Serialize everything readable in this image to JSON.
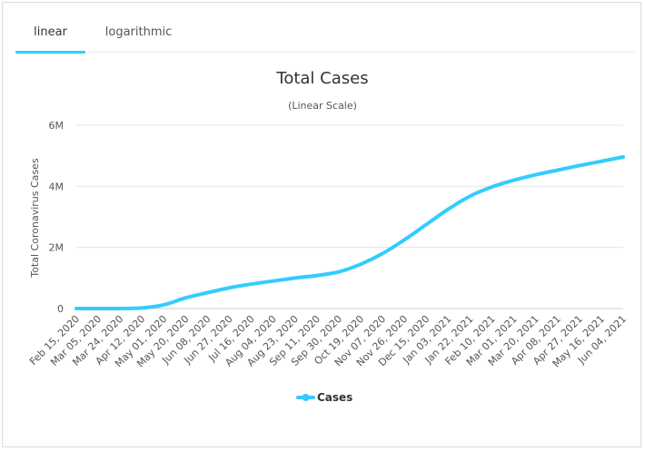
{
  "tabs": [
    {
      "label": "linear",
      "active": true
    },
    {
      "label": "logarithmic",
      "active": false
    }
  ],
  "colors": {
    "series": "#33ccff",
    "tab_underline": "#33ccff",
    "grid": "#e6e6e6",
    "text": "#333333"
  },
  "chart_data": {
    "type": "line",
    "title": "Total Cases",
    "subtitle": "(Linear Scale)",
    "xlabel": "",
    "ylabel": "Total Coronavirus Cases",
    "ylim": [
      0,
      6000000
    ],
    "yticks": [
      0,
      2000000,
      4000000,
      6000000
    ],
    "ytick_labels": [
      "0",
      "2M",
      "4M",
      "6M"
    ],
    "grid": true,
    "legend": "bottom-center",
    "categories": [
      "Feb 15, 2020",
      "Mar 05, 2020",
      "Mar 24, 2020",
      "Apr 12, 2020",
      "May 01, 2020",
      "May 20, 2020",
      "Jun 08, 2020",
      "Jun 27, 2020",
      "Jul 16, 2020",
      "Aug 04, 2020",
      "Aug 23, 2020",
      "Sep 11, 2020",
      "Sep 30, 2020",
      "Oct 19, 2020",
      "Nov 07, 2020",
      "Nov 26, 2020",
      "Dec 15, 2020",
      "Jan 03, 2021",
      "Jan 22, 2021",
      "Feb 10, 2021",
      "Mar 01, 2021",
      "Mar 20, 2021",
      "Apr 08, 2021",
      "Apr 27, 2021",
      "May 16, 2021",
      "Jun 04, 2021"
    ],
    "series": [
      {
        "name": "Cases",
        "values": [
          0,
          0,
          1000,
          20000,
          120000,
          350000,
          520000,
          680000,
          800000,
          900000,
          1000000,
          1080000,
          1200000,
          1450000,
          1800000,
          2250000,
          2750000,
          3250000,
          3680000,
          3980000,
          4200000,
          4380000,
          4530000,
          4680000,
          4820000,
          4960000
        ]
      }
    ]
  }
}
